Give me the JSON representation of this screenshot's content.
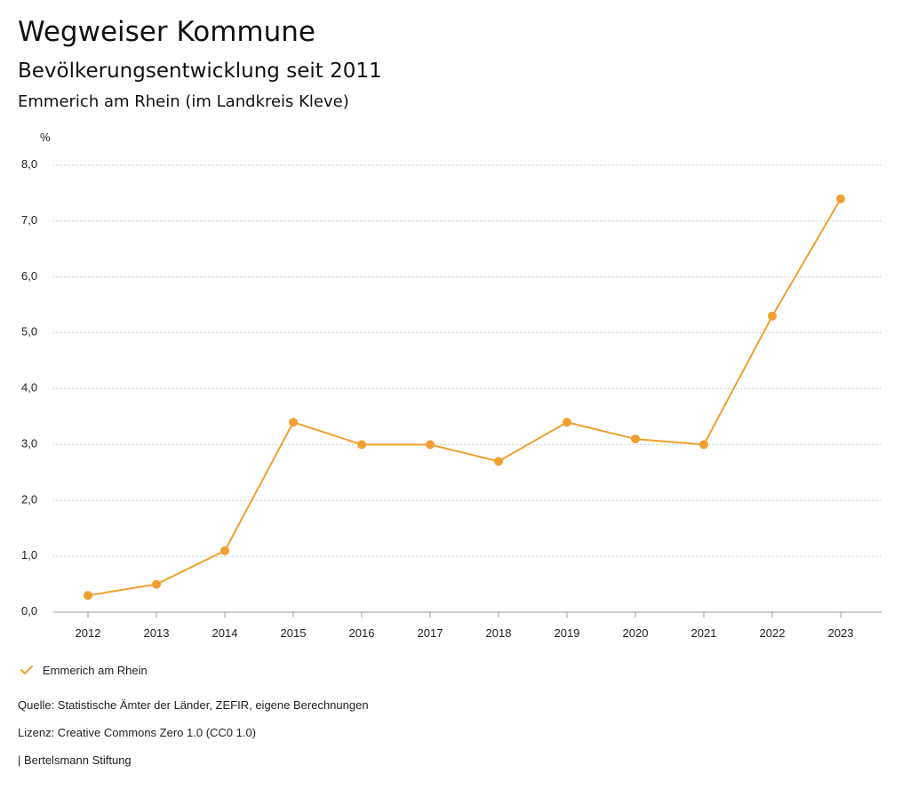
{
  "header": {
    "title": "Wegweiser Kommune",
    "subtitle": "Bevölkerungsentwicklung seit 2011",
    "region": "Emmerich am Rhein (im Landkreis Kleve)"
  },
  "legend": {
    "label": "Emmerich am Rhein",
    "icon": "checkmark-icon"
  },
  "footer": {
    "source": "Quelle: Statistische Ämter der Länder, ZEFIR, eigene Berechnungen",
    "license": "Lizenz: Creative Commons Zero 1.0 (CC0 1.0)",
    "publisher": "| Bertelsmann Stiftung"
  },
  "colors": {
    "series": "#f0a030",
    "grid": "#bbbbbb"
  },
  "chart_data": {
    "type": "line",
    "title": "Bevölkerungsentwicklung seit 2011",
    "ylabel": "%",
    "xlabel": "",
    "categories": [
      "2012",
      "2013",
      "2014",
      "2015",
      "2016",
      "2017",
      "2018",
      "2019",
      "2020",
      "2021",
      "2022",
      "2023"
    ],
    "series": [
      {
        "name": "Emmerich am Rhein",
        "values": [
          0.3,
          0.5,
          1.1,
          3.4,
          3.0,
          3.0,
          2.7,
          3.4,
          3.1,
          3.0,
          5.3,
          7.4
        ]
      }
    ],
    "ylim": [
      0,
      8
    ],
    "yticks": [
      0,
      1,
      2,
      3,
      4,
      5,
      6,
      7,
      8
    ],
    "ytick_labels": [
      "0,0",
      "1,0",
      "2,0",
      "3,0",
      "4,0",
      "5,0",
      "6,0",
      "7,0",
      "8,0"
    ],
    "grid": true,
    "legend_position": "bottom-left"
  }
}
